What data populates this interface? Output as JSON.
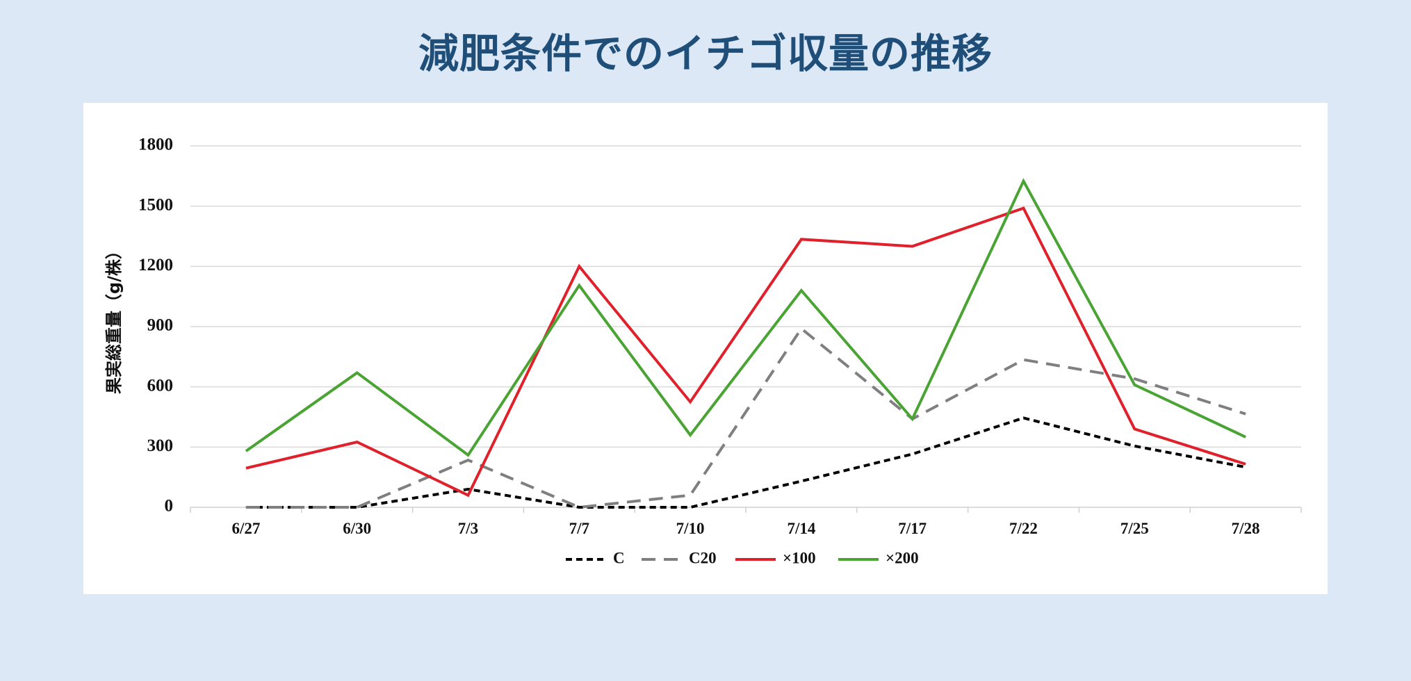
{
  "title": "減肥条件でのイチゴ収量の推移",
  "chart_data": {
    "type": "line",
    "title": "",
    "xlabel": "",
    "ylabel": "果実総重量（g/株）",
    "ylim": [
      0,
      1800
    ],
    "yticks": [
      0,
      300,
      600,
      900,
      1200,
      1500,
      1800
    ],
    "categories": [
      "6/27",
      "6/30",
      "7/3",
      "7/7",
      "7/10",
      "7/14",
      "7/17",
      "7/22",
      "7/25",
      "7/28"
    ],
    "grid": "horizontal",
    "legend_position": "bottom",
    "series": [
      {
        "name": "C",
        "color": "#000000",
        "dash": "dotted",
        "values": [
          0,
          0,
          90,
          0,
          0,
          130,
          265,
          445,
          305,
          200
        ]
      },
      {
        "name": "C20",
        "color": "#7f7f7f",
        "dash": "dashed",
        "values": [
          0,
          0,
          235,
          0,
          60,
          890,
          440,
          735,
          640,
          465
        ]
      },
      {
        "name": "×100",
        "color": "#e0202a",
        "dash": "solid",
        "values": [
          195,
          325,
          60,
          1200,
          525,
          1335,
          1300,
          1490,
          390,
          215
        ]
      },
      {
        "name": "×200",
        "color": "#4aa434",
        "dash": "solid",
        "values": [
          280,
          670,
          260,
          1105,
          360,
          1080,
          440,
          1625,
          610,
          350
        ]
      }
    ]
  }
}
